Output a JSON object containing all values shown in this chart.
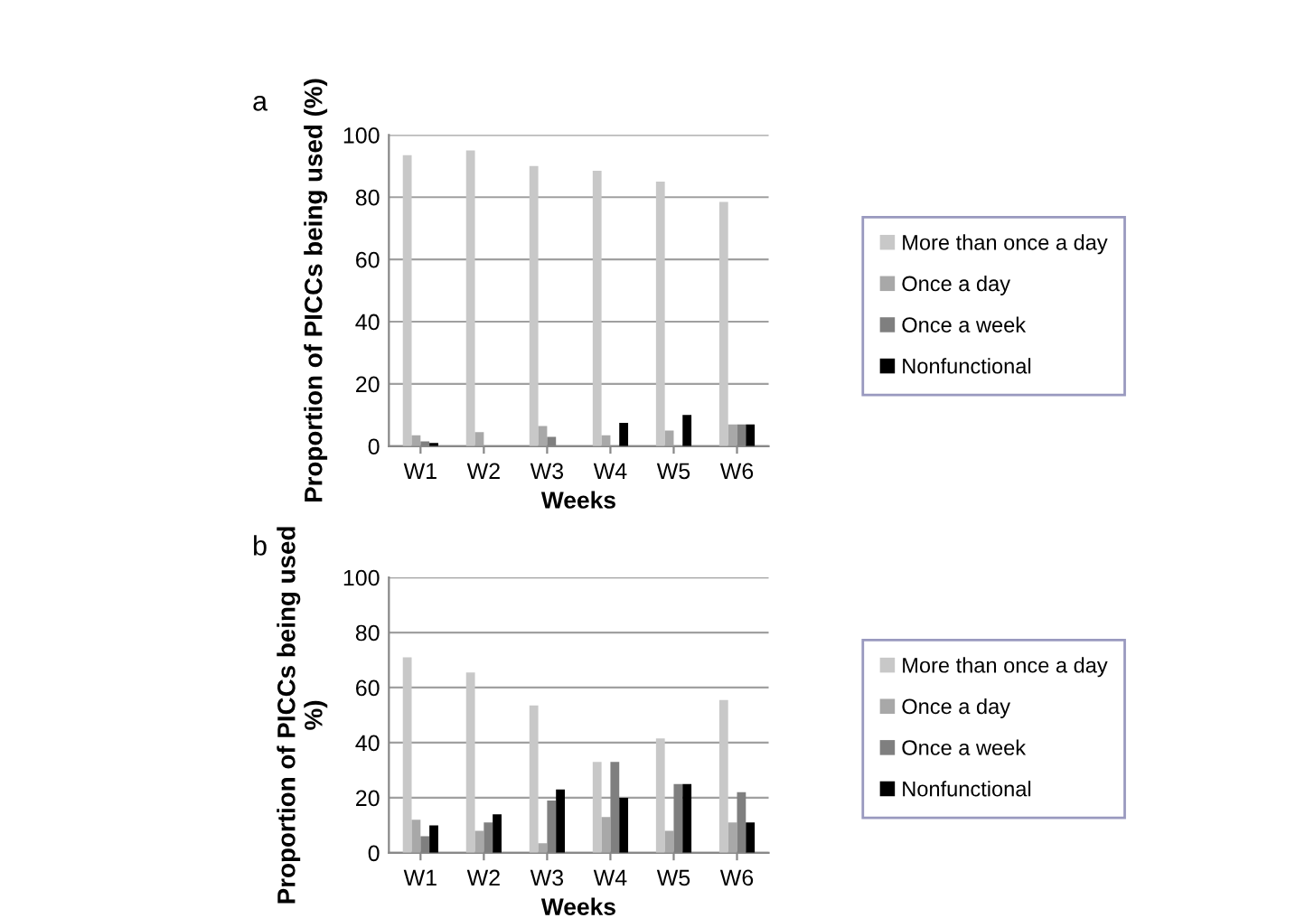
{
  "chart_data": [
    {
      "type": "bar",
      "title": "a",
      "xlabel": "Weeks",
      "ylabel": "Proportion of PICCs being used (%)",
      "categories": [
        "W1",
        "W2",
        "W3",
        "W4",
        "W5",
        "W6"
      ],
      "series": [
        {
          "name": "More than once a day",
          "color": "#c8c8c8",
          "values": [
            93.5,
            95,
            90,
            88.5,
            85,
            78.5
          ]
        },
        {
          "name": "Once a day",
          "color": "#a8a8a8",
          "values": [
            3.5,
            4.5,
            6.5,
            3.5,
            5,
            7
          ]
        },
        {
          "name": "Once a week",
          "color": "#7f7f7f",
          "values": [
            1.5,
            0,
            3,
            0,
            0,
            7
          ]
        },
        {
          "name": "Nonfunctional",
          "color": "#000000",
          "values": [
            1,
            0,
            0,
            7.5,
            10,
            7
          ]
        }
      ],
      "ylim": [
        0,
        100
      ],
      "yticks": [
        0,
        20,
        40,
        60,
        80,
        100
      ],
      "grid": "y",
      "legend": "right"
    },
    {
      "type": "bar",
      "title": "b",
      "xlabel": "Weeks",
      "ylabel": "Proportion of PICCs being used %)",
      "categories": [
        "W1",
        "W2",
        "W3",
        "W4",
        "W5",
        "W6"
      ],
      "series": [
        {
          "name": "More than once a day",
          "color": "#c8c8c8",
          "values": [
            71,
            65.5,
            53.5,
            33,
            41.5,
            55.5
          ]
        },
        {
          "name": "Once a day",
          "color": "#a8a8a8",
          "values": [
            12,
            8,
            3.5,
            13,
            8,
            11
          ]
        },
        {
          "name": "Once a week",
          "color": "#7f7f7f",
          "values": [
            6,
            11,
            19,
            33,
            25,
            22
          ]
        },
        {
          "name": "Nonfunctional",
          "color": "#000000",
          "values": [
            10,
            14,
            23,
            20,
            25,
            11
          ]
        }
      ],
      "ylim": [
        0,
        100
      ],
      "yticks": [
        0,
        20,
        40,
        60,
        80,
        100
      ],
      "grid": "y",
      "legend": "right"
    }
  ]
}
